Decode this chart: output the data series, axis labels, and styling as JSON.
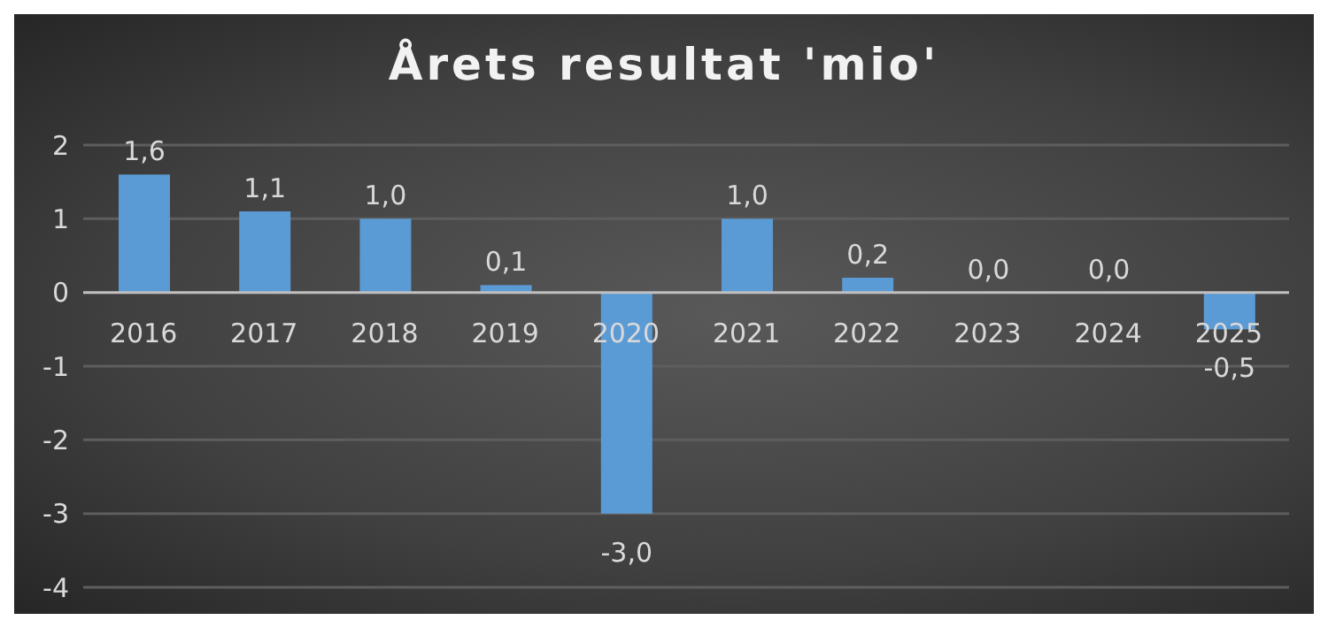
{
  "chart_data": {
    "type": "bar",
    "title": "Årets resultat 'mio'",
    "categories": [
      "2016",
      "2017",
      "2018",
      "2019",
      "2020",
      "2021",
      "2022",
      "2023",
      "2024",
      "2025"
    ],
    "values": [
      1.6,
      1.1,
      1.0,
      0.1,
      -3.0,
      1.0,
      0.2,
      0.0,
      0.0,
      -0.5
    ],
    "value_labels": [
      "1,6",
      "1,1",
      "1,0",
      "0,1",
      "-3,0",
      "1,0",
      "0,2",
      "0,0",
      "0,0",
      "-0,5"
    ],
    "color": "#5b9bd5",
    "ylim": [
      -4,
      2
    ],
    "yticks": [
      -4,
      -3,
      -2,
      -1,
      0,
      1,
      2
    ],
    "grid": "y",
    "legend": false
  }
}
